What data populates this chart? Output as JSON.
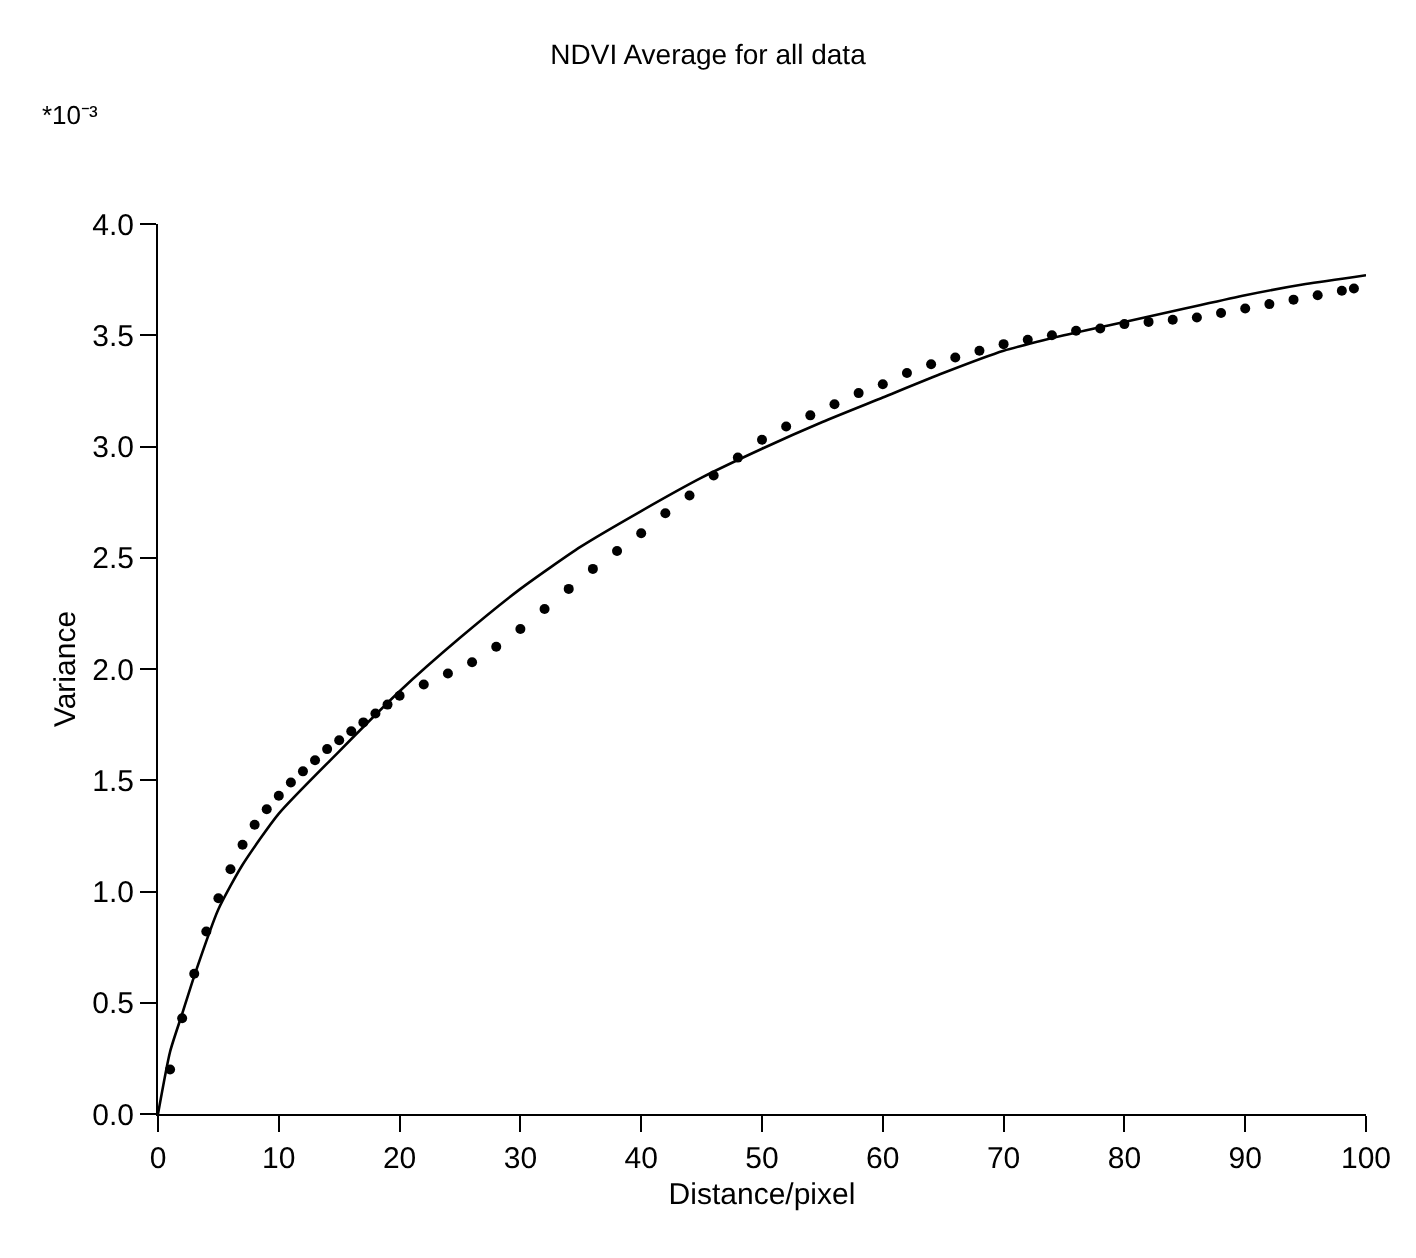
{
  "chart_data": {
    "type": "scatter",
    "title": "NDVI Average for all data",
    "xlabel": "Distance/pixel",
    "ylabel": "Variance",
    "annotations": [
      "*10⁻³"
    ],
    "xlim": [
      0,
      100
    ],
    "xticks": [
      0,
      10,
      20,
      30,
      40,
      50,
      60,
      70,
      80,
      90,
      100
    ],
    "ylim": [
      0,
      4.0
    ],
    "yticks": [
      {
        "value": 0,
        "label": "0.0"
      },
      {
        "value": 0.5,
        "label": "0.5"
      },
      {
        "value": 1,
        "label": "1.0"
      },
      {
        "value": 1.5,
        "label": "1.5"
      },
      {
        "value": 2,
        "label": "2.0"
      },
      {
        "value": 2.5,
        "label": "2.5"
      },
      {
        "value": 3,
        "label": "3.0"
      },
      {
        "value": 3.5,
        "label": "3.5"
      },
      {
        "value": 4,
        "label": "4.0"
      }
    ],
    "legend": false,
    "series": [
      {
        "marker": "circle",
        "color": "#000000",
        "x": [
          1,
          2,
          3,
          4,
          5,
          6,
          7,
          8,
          9,
          10,
          11,
          12,
          13,
          14,
          15,
          16,
          17,
          18,
          19,
          20,
          22,
          24,
          26,
          28,
          30,
          32,
          34,
          36,
          38,
          40,
          42,
          44,
          46,
          48,
          50,
          52,
          54,
          56,
          58,
          60,
          62,
          64,
          66,
          68,
          70,
          72,
          74,
          76,
          78,
          80,
          82,
          84,
          86,
          88,
          90,
          92,
          94,
          96,
          98,
          99
        ],
        "values": [
          0.2,
          0.43,
          0.63,
          0.82,
          0.97,
          1.1,
          1.21,
          1.3,
          1.37,
          1.43,
          1.49,
          1.54,
          1.59,
          1.64,
          1.68,
          1.72,
          1.76,
          1.8,
          1.84,
          1.88,
          1.93,
          1.98,
          2.03,
          2.1,
          2.18,
          2.27,
          2.36,
          2.45,
          2.53,
          2.61,
          2.7,
          2.78,
          2.87,
          2.95,
          3.03,
          3.09,
          3.14,
          3.19,
          3.24,
          3.28,
          3.33,
          3.37,
          3.4,
          3.43,
          3.46,
          3.48,
          3.5,
          3.52,
          3.53,
          3.55,
          3.56,
          3.57,
          3.58,
          3.6,
          3.62,
          3.64,
          3.66,
          3.68,
          3.7,
          3.71
        ]
      },
      {
        "type": "line",
        "line_style": "solid",
        "color": "#000000",
        "x": [
          0,
          1,
          2,
          3,
          5,
          7,
          10,
          15,
          20,
          25,
          30,
          35,
          40,
          45,
          50,
          55,
          60,
          65,
          70,
          75,
          80,
          85,
          90,
          95,
          100
        ],
        "values": [
          0,
          0.28,
          0.45,
          0.62,
          0.92,
          1.12,
          1.35,
          1.63,
          1.9,
          2.14,
          2.36,
          2.55,
          2.71,
          2.86,
          2.99,
          3.11,
          3.22,
          3.33,
          3.43,
          3.5,
          3.56,
          3.62,
          3.68,
          3.73,
          3.77
        ]
      }
    ]
  }
}
